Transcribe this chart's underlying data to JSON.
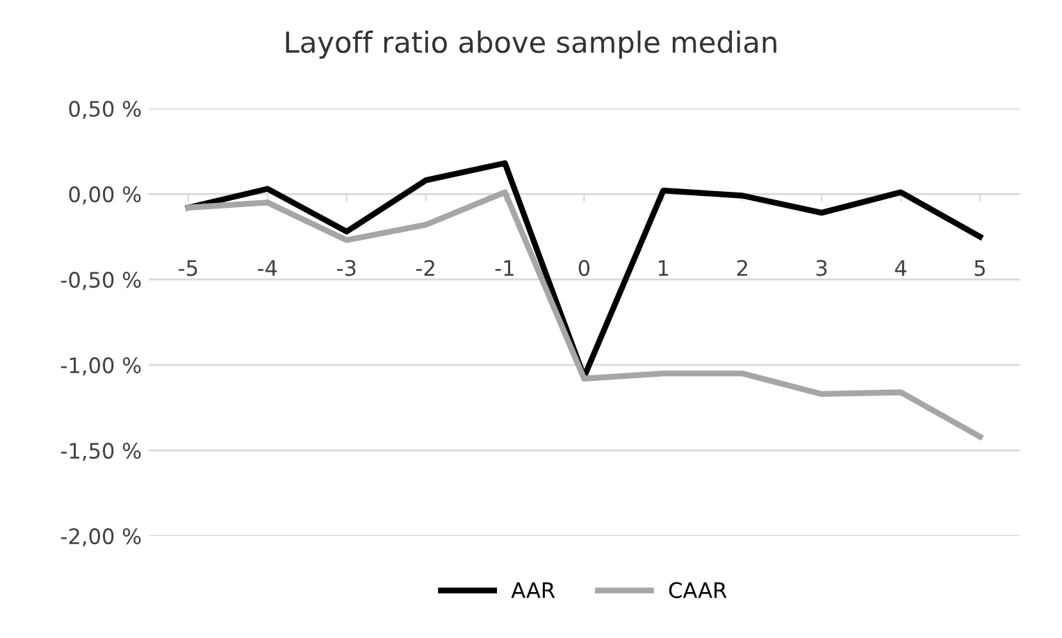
{
  "chart_data": {
    "type": "line",
    "title": "Layoff ratio above sample median",
    "categories": [
      "-5",
      "-4",
      "-3",
      "-2",
      "-1",
      "0",
      "1",
      "2",
      "3",
      "4",
      "5"
    ],
    "series": [
      {
        "name": "AAR",
        "color": "#000000",
        "values": [
          -0.08,
          0.03,
          -0.22,
          0.08,
          0.18,
          -1.07,
          0.02,
          -0.01,
          -0.11,
          0.01,
          -0.25
        ]
      },
      {
        "name": "CAAR",
        "color": "#a6a6a6",
        "values": [
          -0.08,
          -0.05,
          -0.27,
          -0.18,
          0.01,
          -1.08,
          -1.05,
          -1.05,
          -1.17,
          -1.16,
          -1.42
        ]
      }
    ],
    "ylim": [
      -2.0,
      0.5
    ],
    "yticks": [
      {
        "value": 0.5,
        "label": "0,50 %"
      },
      {
        "value": 0.0,
        "label": "0,00 %"
      },
      {
        "value": -0.5,
        "label": "-0,50 %"
      },
      {
        "value": -1.0,
        "label": "-1,00 %"
      },
      {
        "value": -1.5,
        "label": "-1,50 %"
      },
      {
        "value": -2.0,
        "label": "-2,00 %"
      }
    ],
    "grid": "y",
    "legend": "bottom",
    "marker": "none",
    "line_style": "solid"
  }
}
